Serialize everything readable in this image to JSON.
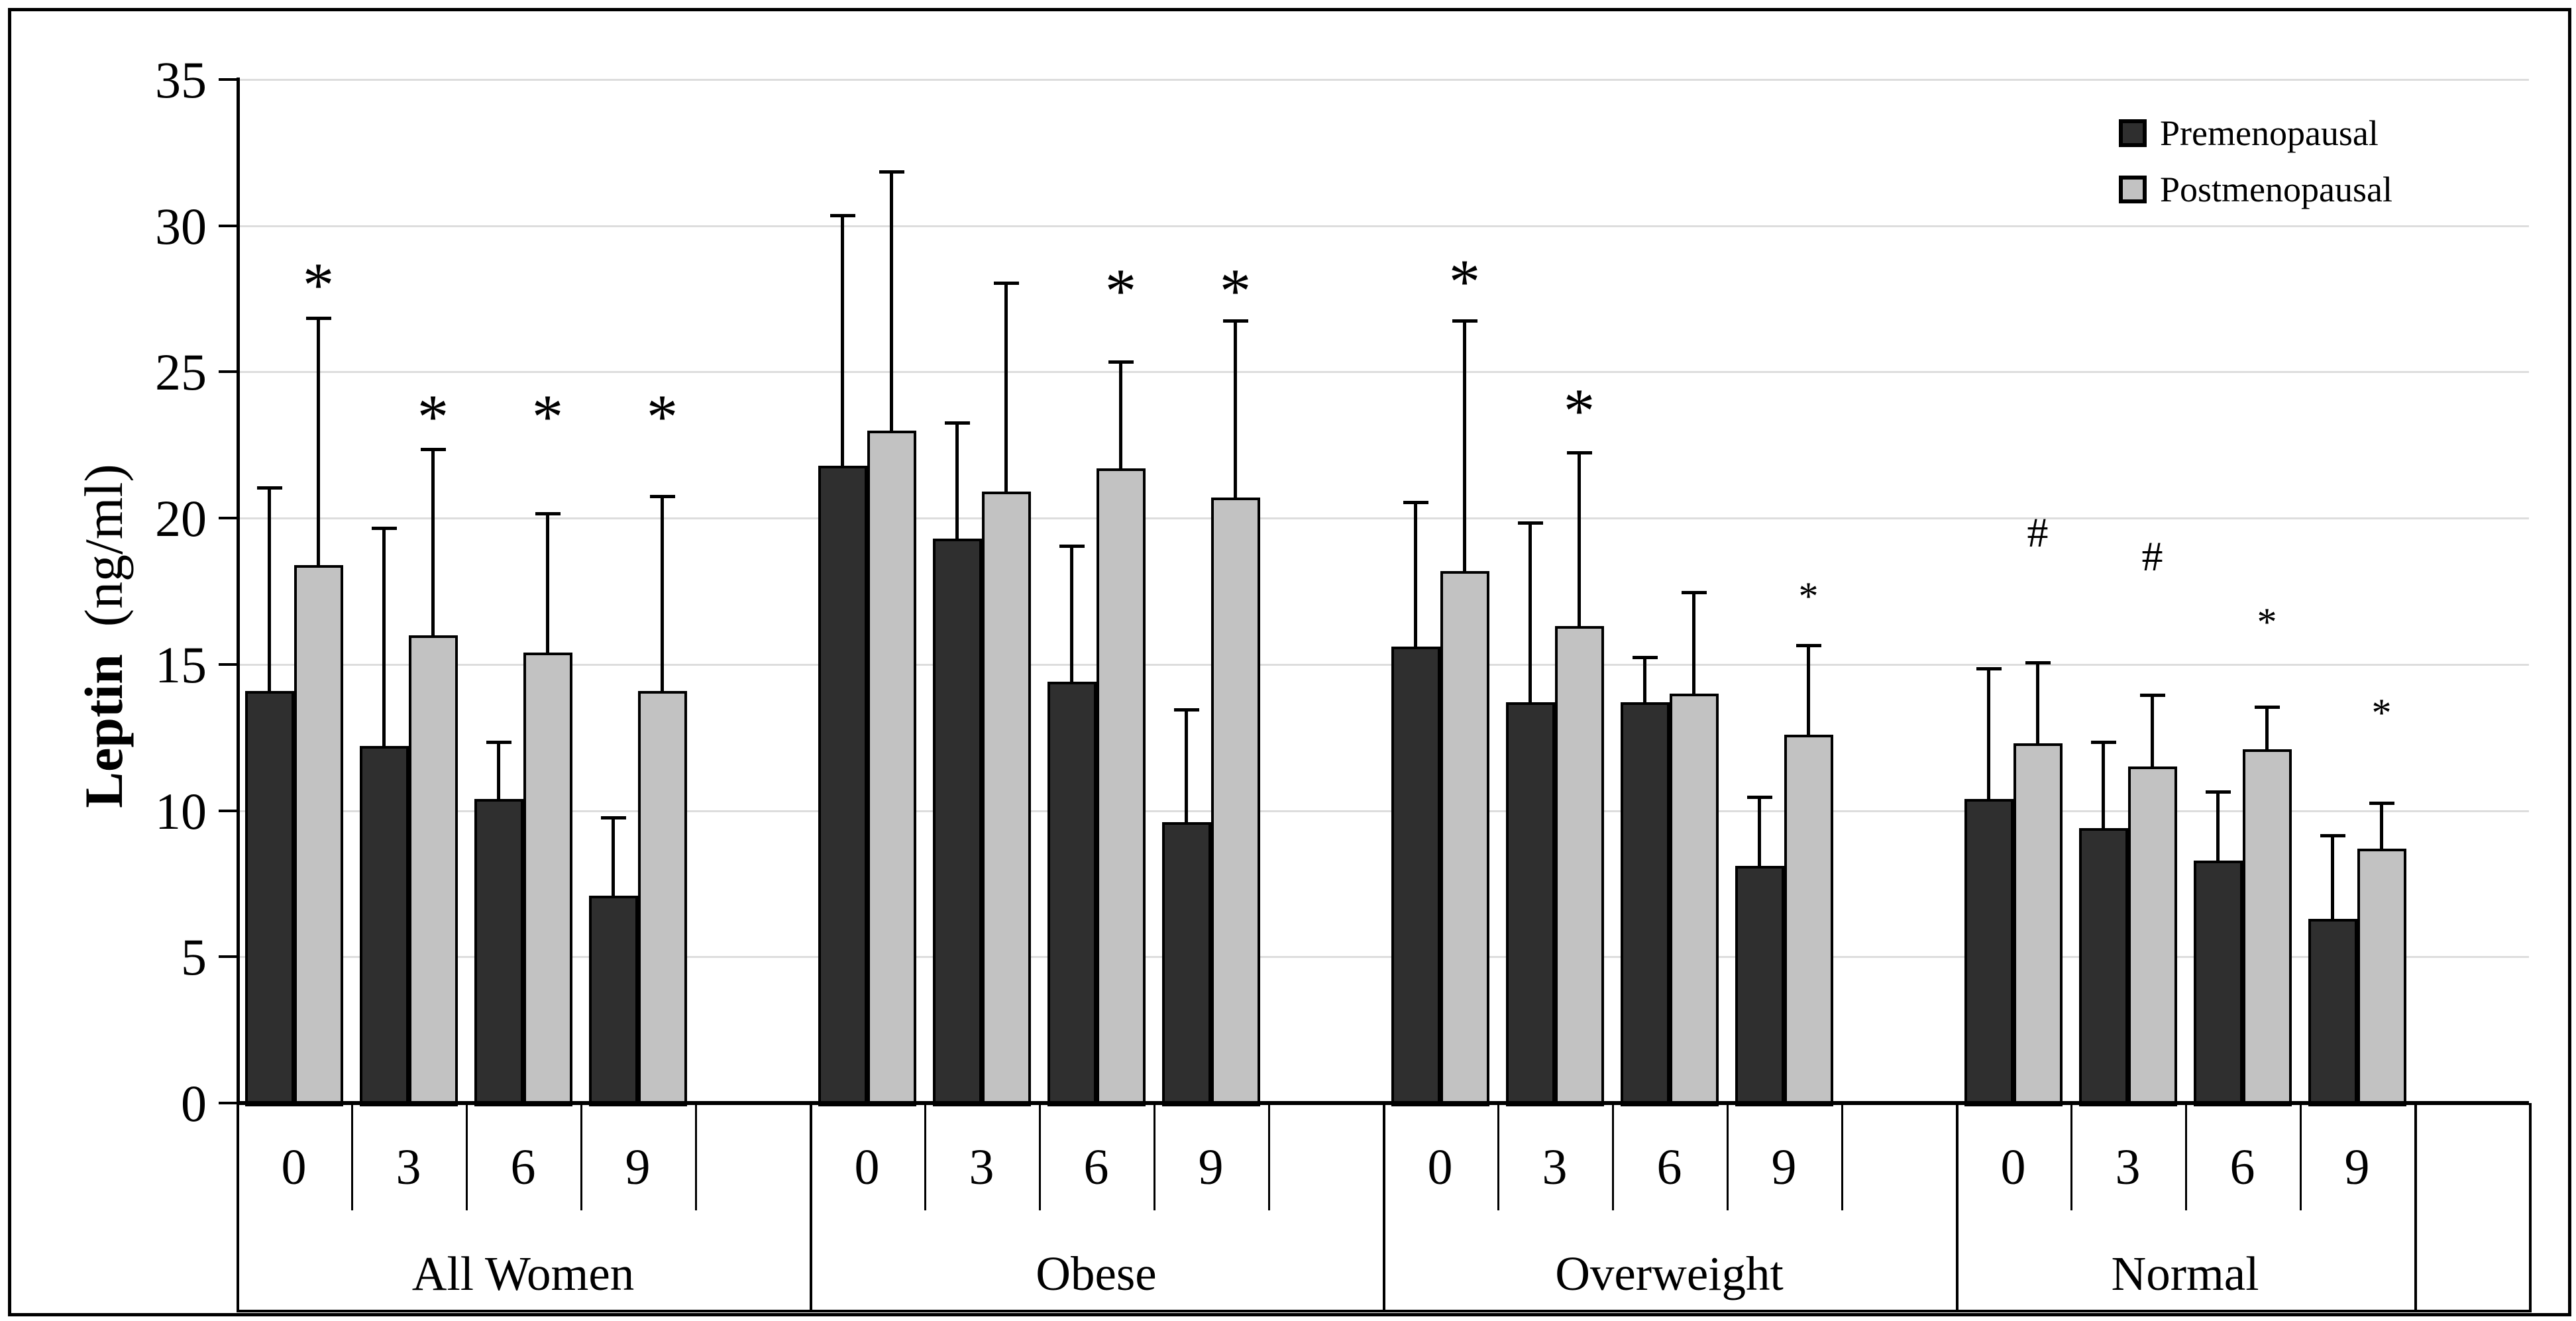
{
  "chart_data": {
    "type": "bar",
    "title": "",
    "y_axis": {
      "label_bold": "Leptin",
      "label_unit": "(ng/ml)",
      "min": 0,
      "max": 35,
      "tick_step": 5,
      "ticks": [
        "0",
        "5",
        "10",
        "15",
        "20",
        "25",
        "30",
        "35"
      ]
    },
    "x_axis": {
      "time_labels": [
        "0",
        "3",
        "6",
        "9"
      ],
      "group_labels": [
        "All Women",
        "Obese",
        "Overweight",
        "Normal"
      ]
    },
    "legend": {
      "position": "top-right",
      "items": [
        {
          "label": "Premenopausal",
          "color": "#2f2f2f"
        },
        {
          "label": "Postmenopausal",
          "color": "#c2c2c2"
        }
      ]
    },
    "grid": {
      "on": true,
      "color": "#dddddd"
    },
    "groups": [
      {
        "label": "All Women",
        "premenopausal": {
          "values": [
            14.1,
            12.2,
            10.4,
            7.1
          ],
          "err_upper": [
            7.0,
            7.5,
            2.0,
            2.7
          ]
        },
        "postmenopausal": {
          "values": [
            18.4,
            16.0,
            15.4,
            14.1
          ],
          "err_upper": [
            8.5,
            6.4,
            4.8,
            6.7
          ]
        },
        "annotations": [
          {
            "time_index": 0,
            "symbol": "*",
            "y": 28.7,
            "size": "large"
          },
          {
            "time_index": 1,
            "symbol": "*",
            "y": 24.2,
            "size": "large"
          },
          {
            "time_index": 2,
            "symbol": "*",
            "y": 24.2,
            "size": "large"
          },
          {
            "time_index": 3,
            "symbol": "*",
            "y": 24.2,
            "size": "large"
          }
        ]
      },
      {
        "label": "Obese",
        "premenopausal": {
          "values": [
            21.8,
            19.3,
            14.4,
            9.6
          ],
          "err_upper": [
            8.6,
            4.0,
            4.7,
            3.9
          ]
        },
        "postmenopausal": {
          "values": [
            23.0,
            20.9,
            21.7,
            20.7
          ],
          "err_upper": [
            8.9,
            7.2,
            3.7,
            6.1
          ]
        },
        "annotations": [
          {
            "time_index": 2,
            "symbol": "*",
            "y": 28.5,
            "size": "large"
          },
          {
            "time_index": 3,
            "symbol": "*",
            "y": 28.5,
            "size": "large"
          }
        ]
      },
      {
        "label": "Overweight",
        "premenopausal": {
          "values": [
            15.6,
            13.7,
            13.7,
            8.1
          ],
          "err_upper": [
            5.0,
            6.2,
            1.6,
            2.4
          ]
        },
        "postmenopausal": {
          "values": [
            18.2,
            16.3,
            14.0,
            12.6
          ],
          "err_upper": [
            8.6,
            6.0,
            3.5,
            3.1
          ]
        },
        "annotations": [
          {
            "time_index": 0,
            "symbol": "*",
            "y": 28.8,
            "size": "large"
          },
          {
            "time_index": 1,
            "symbol": "*",
            "y": 24.4,
            "size": "large"
          },
          {
            "time_index": 3,
            "symbol": "*",
            "y": 17.8,
            "size": "small"
          }
        ]
      },
      {
        "label": "Normal",
        "premenopausal": {
          "values": [
            10.4,
            9.4,
            8.3,
            6.3
          ],
          "err_upper": [
            4.5,
            3.0,
            2.4,
            2.9
          ]
        },
        "postmenopausal": {
          "values": [
            12.3,
            11.5,
            12.1,
            8.7
          ],
          "err_upper": [
            2.8,
            2.5,
            1.5,
            1.6
          ]
        },
        "annotations": [
          {
            "time_index": 0,
            "symbol": "#",
            "y": 19.5,
            "size": "small"
          },
          {
            "time_index": 1,
            "symbol": "#",
            "y": 18.7,
            "size": "small"
          },
          {
            "time_index": 2,
            "symbol": "*",
            "y": 16.9,
            "size": "small"
          },
          {
            "time_index": 3,
            "symbol": "*",
            "y": 13.8,
            "size": "small"
          }
        ]
      }
    ]
  }
}
